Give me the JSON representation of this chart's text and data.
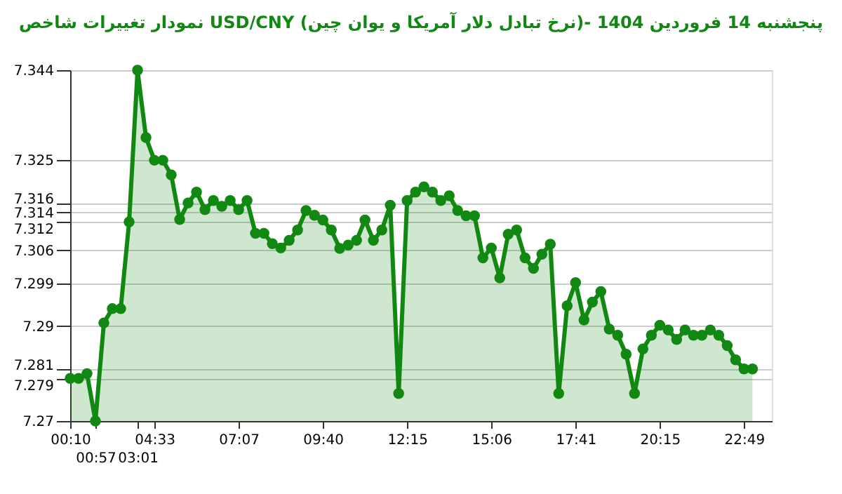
{
  "chart_data": {
    "type": "area",
    "title": "نمودار تغییرات شاخص USD/CNY (نرخ تبادل دلار آمریکا و یوان چین)- پنجشنبه  14 فروردین 1404",
    "categories": [
      "00:10",
      null,
      null,
      "00:57",
      null,
      null,
      null,
      null,
      "03:01",
      null,
      "04:33",
      null,
      null,
      null,
      null,
      null,
      null,
      null,
      null,
      null,
      "07:07",
      null,
      null,
      null,
      null,
      null,
      null,
      null,
      null,
      null,
      "09:40",
      null,
      null,
      null,
      null,
      null,
      null,
      null,
      null,
      null,
      "12:15",
      null,
      null,
      null,
      null,
      null,
      null,
      null,
      null,
      null,
      "15:06",
      null,
      null,
      null,
      null,
      null,
      null,
      null,
      null,
      null,
      "17:41",
      null,
      null,
      null,
      null,
      null,
      null,
      null,
      null,
      null,
      "20:15",
      null,
      null,
      null,
      null,
      null,
      null,
      null,
      null,
      null,
      "22:49",
      null
    ],
    "series": [
      {
        "color": "#118811",
        "values": [
          7.279,
          7.279,
          7.28,
          7.27,
          7.2907,
          7.2937,
          7.2937,
          7.312,
          7.344,
          7.3298,
          7.325,
          7.325,
          7.3219,
          7.3125,
          7.316,
          7.3183,
          7.3146,
          7.3165,
          7.3153,
          7.3165,
          7.3146,
          7.3165,
          7.3096,
          7.3096,
          7.3074,
          7.3065,
          7.3081,
          7.3103,
          7.3144,
          7.3134,
          7.3124,
          7.3103,
          7.3064,
          7.3071,
          7.3081,
          7.3124,
          7.3081,
          7.3103,
          7.3155,
          7.2758,
          7.3165,
          7.3183,
          7.3194,
          7.3183,
          7.3165,
          7.3175,
          7.3144,
          7.3133,
          7.3133,
          7.3044,
          7.3065,
          7.3002,
          7.3094,
          7.3103,
          7.3044,
          7.3022,
          7.3052,
          7.3073,
          7.2758,
          7.2943,
          7.2992,
          7.2913,
          7.2951,
          7.2973,
          7.2894,
          7.2881,
          7.2841,
          7.2758,
          7.2852,
          7.2881,
          7.2902,
          7.2892,
          7.2872,
          7.2892,
          7.2881,
          7.2881,
          7.2892,
          7.2881,
          7.2859,
          7.2829,
          7.281,
          7.281
        ]
      }
    ],
    "ylim": [
      7.27,
      7.344
    ],
    "yticks": [
      7.27,
      7.279,
      7.281,
      7.29,
      7.299,
      7.306,
      7.312,
      7.314,
      7.316,
      7.325,
      7.344
    ],
    "grid": "y",
    "marker": "circle",
    "line_style": "solid"
  }
}
